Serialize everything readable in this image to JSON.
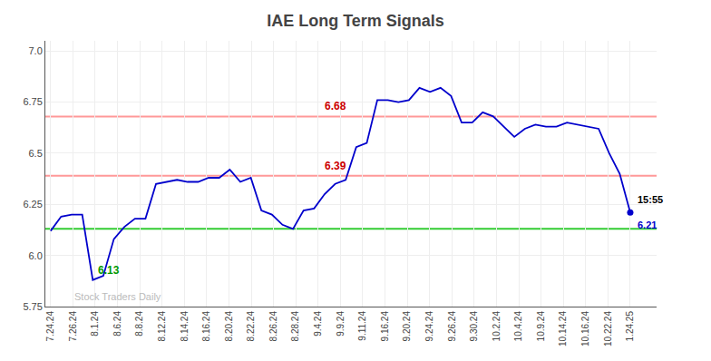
{
  "chart_data": {
    "type": "line",
    "title": "IAE Long Term Signals",
    "background_color": "#ffffff",
    "x": [
      0,
      1,
      2,
      3,
      4,
      5,
      6,
      7,
      8,
      9,
      10,
      11,
      12,
      13,
      14,
      15,
      16,
      17,
      18,
      19,
      20,
      21,
      22,
      23,
      24,
      25,
      26,
      27,
      28,
      29,
      30,
      31,
      32,
      33,
      34,
      35,
      36,
      37,
      38,
      39,
      40,
      41,
      42,
      43,
      44,
      45,
      46,
      47,
      48,
      49,
      50,
      51,
      52,
      53,
      54,
      55
    ],
    "xlim": [
      -0.5,
      57.5
    ],
    "xticks": [
      {
        "value": 0,
        "label": "7.24.24"
      },
      {
        "value": 2.1153846153846154,
        "label": "7.26.24"
      },
      {
        "value": 4.230769230769231,
        "label": "8.1.24"
      },
      {
        "value": 6.346153846153846,
        "label": "8.6.24"
      },
      {
        "value": 8.461538461538462,
        "label": "8.8.24"
      },
      {
        "value": 10.576923076923077,
        "label": "8.12.24"
      },
      {
        "value": 12.692307692307692,
        "label": "8.14.24"
      },
      {
        "value": 14.807692307692308,
        "label": "8.16.24"
      },
      {
        "value": 16.923076923076923,
        "label": "8.20.24"
      },
      {
        "value": 19.03846153846154,
        "label": "8.22.24"
      },
      {
        "value": 21.153846153846153,
        "label": "8.26.24"
      },
      {
        "value": 23.26923076923077,
        "label": "8.28.24"
      },
      {
        "value": 25.384615384615383,
        "label": "9.4.24"
      },
      {
        "value": 27.5,
        "label": "9.9.24"
      },
      {
        "value": 29.615384615384617,
        "label": "9.11.24"
      },
      {
        "value": 31.73076923076923,
        "label": "9.16.24"
      },
      {
        "value": 33.84615384615385,
        "label": "9.20.24"
      },
      {
        "value": 35.96153846153846,
        "label": "9.24.24"
      },
      {
        "value": 38.07692307692308,
        "label": "9.26.24"
      },
      {
        "value": 40.19230769230769,
        "label": "9.30.24"
      },
      {
        "value": 42.30769230769231,
        "label": "10.2.24"
      },
      {
        "value": 44.42307692307692,
        "label": "10.4.24"
      },
      {
        "value": 46.53846153846154,
        "label": "10.9.24"
      },
      {
        "value": 48.65384615384615,
        "label": "10.14.24"
      },
      {
        "value": 50.76923076923077,
        "label": "10.16.24"
      },
      {
        "value": 52.88461538461539,
        "label": "10.22.24"
      },
      {
        "value": 55,
        "label": "1.24.25"
      }
    ],
    "ylim": [
      5.75,
      7.05
    ],
    "yticks": [
      5.75,
      {
        "value": 6.0,
        "label": "6.0"
      },
      6.25,
      6.5,
      6.75,
      {
        "value": 7.0,
        "label": "7.0"
      }
    ],
    "grid": true,
    "series": [
      {
        "color": "#0000cc",
        "values": [
          6.12,
          6.19,
          6.2,
          6.2,
          5.88,
          5.9,
          6.08,
          6.14,
          6.18,
          6.18,
          6.35,
          6.36,
          6.37,
          6.36,
          6.36,
          6.38,
          6.38,
          6.42,
          6.36,
          6.38,
          6.22,
          6.2,
          6.15,
          6.13,
          6.22,
          6.23,
          6.3,
          6.35,
          6.37,
          6.53,
          6.55,
          6.76,
          6.76,
          6.75,
          6.76,
          6.82,
          6.8,
          6.82,
          6.78,
          6.65,
          6.65,
          6.7,
          6.68,
          6.63,
          6.58,
          6.62,
          6.64,
          6.63,
          6.63,
          6.65,
          6.64,
          6.63,
          6.62,
          6.5,
          6.4,
          6.21
        ]
      }
    ],
    "hlines": [
      {
        "value": 6.13,
        "color": "#33cc33",
        "label": {
          "text": "6.13",
          "color": "#009900"
        }
      },
      {
        "value": 6.39,
        "color": "#ff9999",
        "label": {
          "text": "6.39",
          "color": "#cc0000"
        }
      },
      {
        "value": 6.68,
        "color": "#ff9999",
        "label": {
          "text": "6.68",
          "color": "#cc0000"
        }
      }
    ],
    "last_point_labels": [
      {
        "text": "15:55",
        "color": "#000000"
      },
      {
        "text": "6.21",
        "color": "#0000cc"
      }
    ],
    "watermark": {
      "text": "Stock Traders Daily",
      "color": "#bbbbbb"
    }
  }
}
